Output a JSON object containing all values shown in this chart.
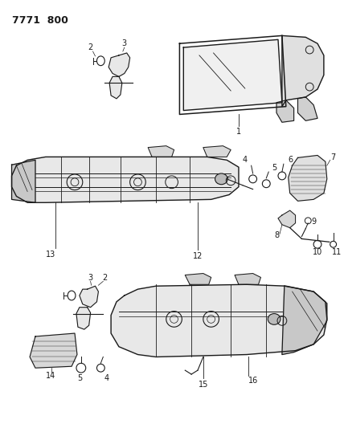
{
  "title": "7771  800",
  "bg_color": "#ffffff",
  "line_color": "#1a1a1a",
  "figsize": [
    4.28,
    5.33
  ],
  "dpi": 100
}
